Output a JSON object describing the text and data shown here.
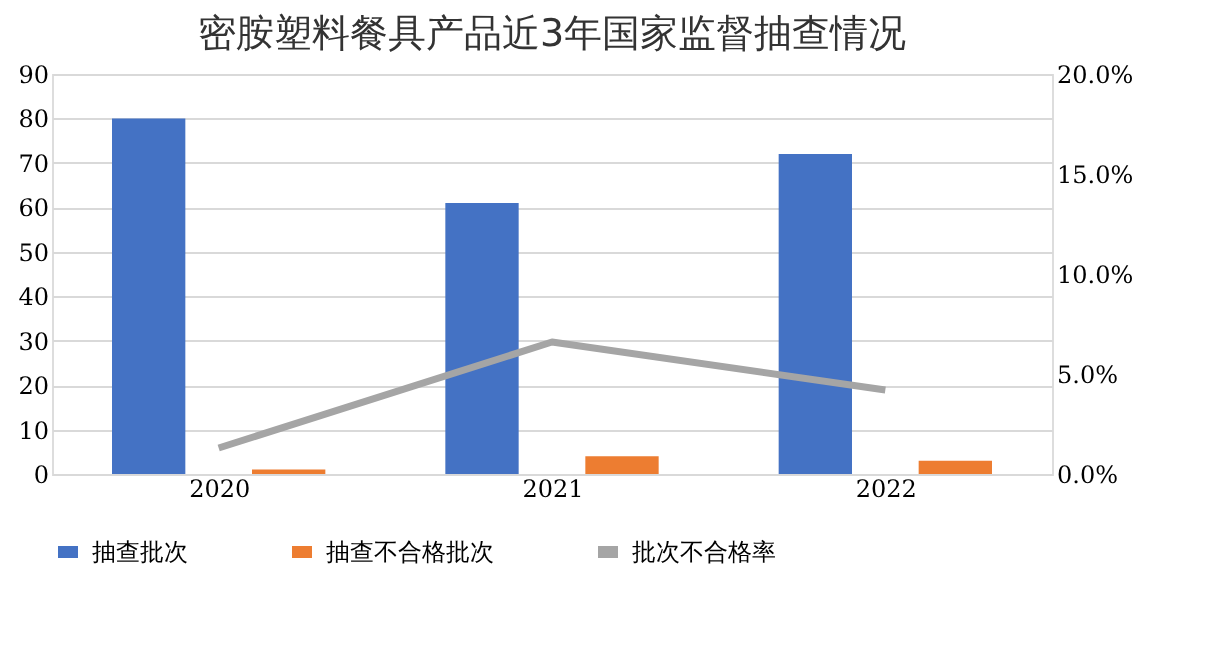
{
  "chart_data": {
    "type": "bar",
    "title": "密胺塑料餐具产品近3年国家监督抽查情况",
    "categories": [
      "2020",
      "2021",
      "2022"
    ],
    "series": [
      {
        "name": "抽查批次",
        "color": "#4472c4",
        "type": "bar",
        "values": [
          80,
          61,
          72
        ]
      },
      {
        "name": "抽查不合格批次",
        "color": "#ed7d31",
        "type": "bar",
        "values": [
          1,
          4,
          3
        ]
      },
      {
        "name": "批次不合格率",
        "color": "#a5a5a5",
        "type": "line",
        "axis": "y2",
        "values": [
          1.3,
          6.6,
          4.2
        ]
      }
    ],
    "ylim": [
      0,
      90
    ],
    "yticks": [
      0,
      10,
      20,
      30,
      40,
      50,
      60,
      70,
      80,
      90
    ],
    "y2lim": [
      0,
      20
    ],
    "y2ticks": [
      {
        "value": 0,
        "label": "0.0%"
      },
      {
        "value": 5,
        "label": "5.0%"
      },
      {
        "value": 10,
        "label": "10.0%"
      },
      {
        "value": 15,
        "label": "15.0%"
      },
      {
        "value": 20,
        "label": "20.0%"
      }
    ],
    "grid": "y",
    "legend": "bottom",
    "marker": "none",
    "line_style": "solid"
  }
}
